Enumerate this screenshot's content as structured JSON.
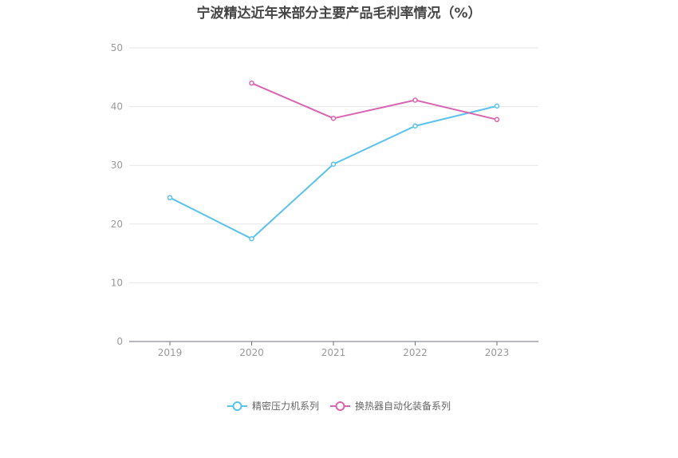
{
  "title": "宁波精达近年来部分主要产品毛利率情况（%）",
  "chart_data": {
    "type": "line",
    "title": "宁波精达近年来部分主要产品毛利率情况（%）",
    "x": [
      "2019",
      "2020",
      "2021",
      "2022",
      "2023"
    ],
    "ylim": [
      0,
      50
    ],
    "yticks": [
      0,
      10,
      20,
      30,
      40,
      50
    ],
    "grid": true,
    "legend_position": "bottom",
    "series": [
      {
        "name": "精密压力机系列",
        "color": "#5bc2ee",
        "values": [
          24.5,
          17.5,
          30.2,
          36.7,
          40.1
        ]
      },
      {
        "name": "换热器自动化装备系列",
        "color": "#d865b1",
        "values": [
          null,
          44.0,
          38.0,
          41.1,
          37.8
        ]
      }
    ]
  }
}
